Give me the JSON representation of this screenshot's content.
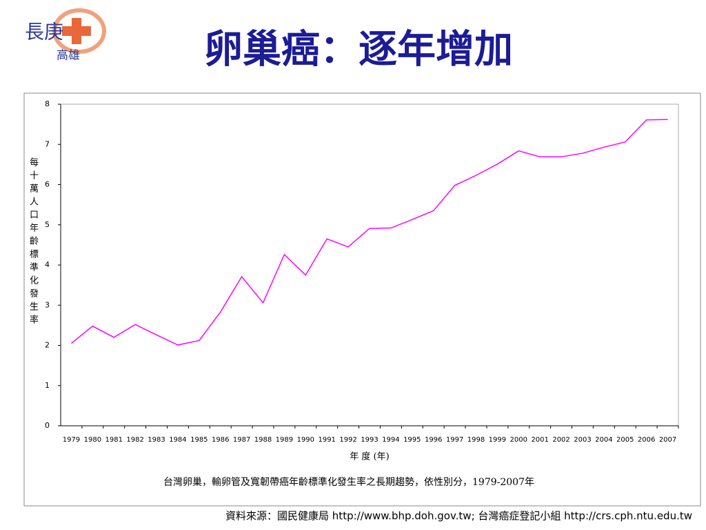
{
  "logo": {
    "name": "長庚",
    "branch": "高雄"
  },
  "title": "卵巢癌：逐年增加",
  "chart_data": {
    "type": "line",
    "y_label": "每十萬人口年齡標準化發生率",
    "x_label": "年 度 (年)",
    "caption": "台灣卵巢，輸卵管及寬韌帶癌年齡標準化發生率之長期趨勢，依性別分，1979-2007年",
    "categories": [
      "1979",
      "1980",
      "1981",
      "1982",
      "1983",
      "1984",
      "1985",
      "1986",
      "1987",
      "1988",
      "1989",
      "1990",
      "1991",
      "1992",
      "1993",
      "1994",
      "1995",
      "1996",
      "1997",
      "1998",
      "1999",
      "2000",
      "2001",
      "2002",
      "2003",
      "2004",
      "2005",
      "2006",
      "2007"
    ],
    "values": [
      2.05,
      2.48,
      2.2,
      2.52,
      2.26,
      2.01,
      2.12,
      2.83,
      3.71,
      3.06,
      4.26,
      3.75,
      4.65,
      4.45,
      4.91,
      4.92,
      5.13,
      5.35,
      5.98,
      6.23,
      6.51,
      6.84,
      6.69,
      6.69,
      6.78,
      6.93,
      7.06,
      7.61,
      7.62
    ],
    "color": "#ff00ff",
    "ylim": [
      0,
      8
    ],
    "yticks": [
      0,
      1,
      2,
      3,
      4,
      5,
      6,
      7,
      8
    ],
    "grid": false
  },
  "source": "資料來源：國民健康局 http://www.bhp.doh.gov.tw; 台灣癌症登記小組 http://crs.cph.ntu.edu.tw"
}
